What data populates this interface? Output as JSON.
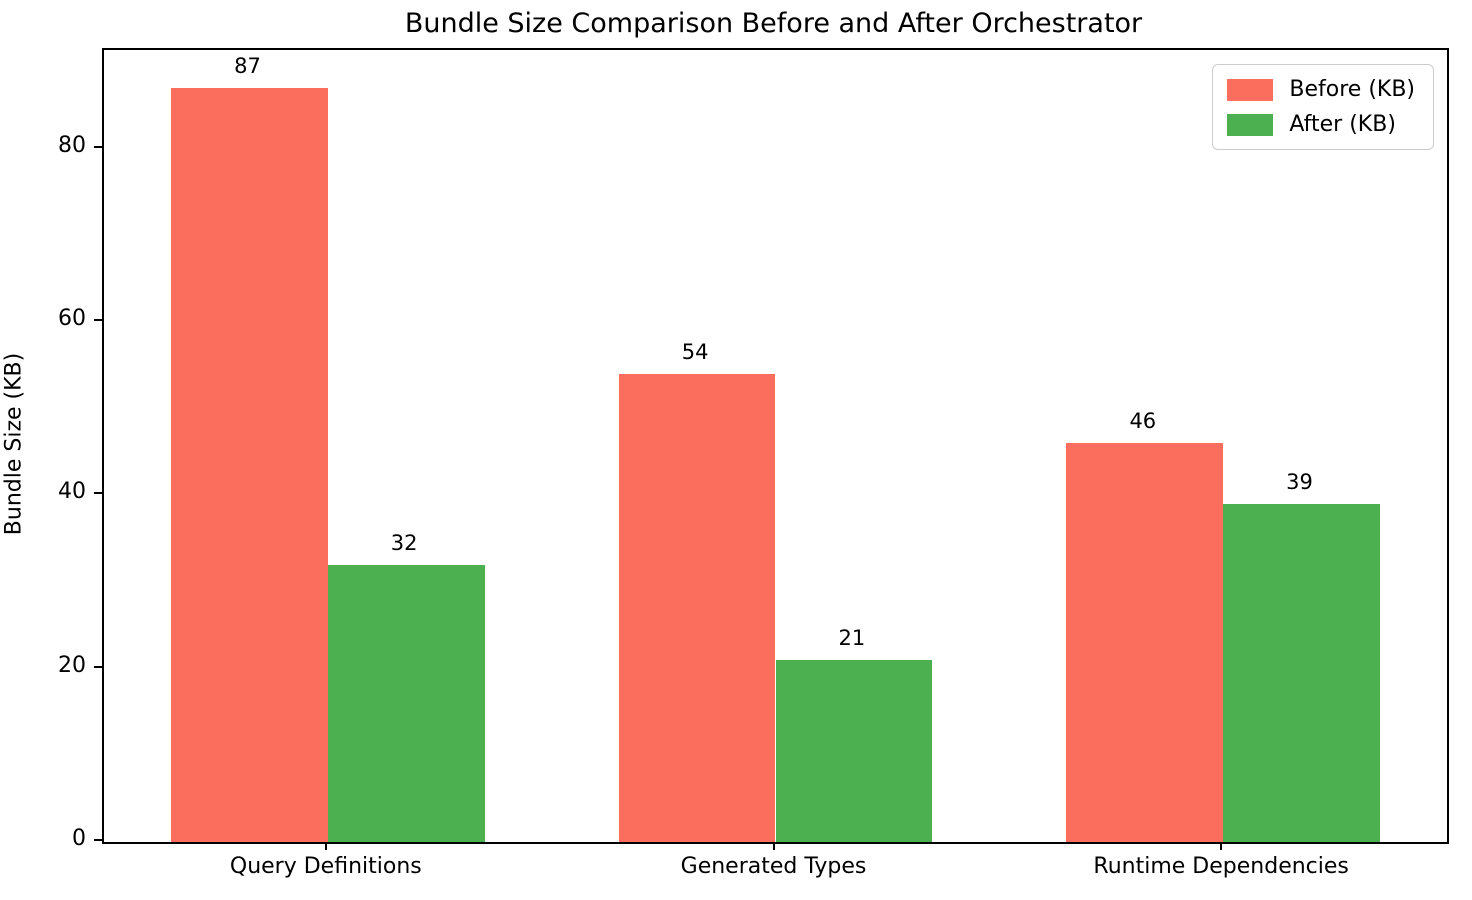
{
  "chart_data": {
    "type": "bar",
    "title": "Bundle Size Comparison Before and After Orchestrator",
    "xlabel": "",
    "ylabel": "Bundle Size (KB)",
    "categories": [
      "Query Definitions",
      "Generated Types",
      "Runtime Dependencies"
    ],
    "series": [
      {
        "name": "Before (KB)",
        "color": "#FB6E5E",
        "values": [
          87,
          54,
          46
        ]
      },
      {
        "name": "After (KB)",
        "color": "#4CAF50",
        "values": [
          32,
          21,
          39
        ]
      }
    ],
    "bar_value_labels": [
      {
        "series": "Before (KB)",
        "labels": [
          "87",
          "54",
          "46"
        ]
      },
      {
        "series": "After (KB)",
        "labels": [
          "32",
          "21",
          "39"
        ]
      }
    ],
    "yticks": [
      "0",
      "20",
      "40",
      "60",
      "80"
    ],
    "ytick_values": [
      0,
      20,
      40,
      60,
      80
    ],
    "ylim": [
      0,
      91.4
    ],
    "grid": false,
    "legend_position": "upper right",
    "axis_color": "#000000",
    "background_color": "#ffffff"
  }
}
